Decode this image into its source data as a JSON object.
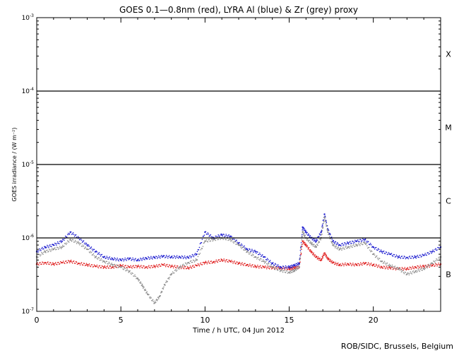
{
  "chart_data": {
    "type": "line",
    "title": "GOES 0.1—0.8nm (red), LYRA Al (blue) & Zr (grey) proxy",
    "xlabel": "Time / h UTC, 04 Jun 2012",
    "ylabel": "GOES irradiance / (W m⁻²)",
    "credit": "ROB/SIDC, Brussels, Belgium",
    "xlim": [
      0,
      24
    ],
    "ylim": [
      1e-07,
      0.001
    ],
    "yscale": "log",
    "x_ticks": [
      0,
      5,
      10,
      15,
      20
    ],
    "x_tick_labels": [
      "0",
      "5",
      "10",
      "15",
      "20"
    ],
    "y_ticks": [
      1e-07,
      1e-06,
      1e-05,
      0.0001,
      0.001
    ],
    "y_tick_labels": [
      {
        "base": "10",
        "exp": "-7"
      },
      {
        "base": "10",
        "exp": "-6"
      },
      {
        "base": "10",
        "exp": "-5"
      },
      {
        "base": "10",
        "exp": "-4"
      },
      {
        "base": "10",
        "exp": "-3"
      }
    ],
    "flare_class_lines": [
      1e-06,
      1e-05,
      0.0001
    ],
    "flare_classes": [
      {
        "label": "X",
        "value": 0.00032
      },
      {
        "label": "M",
        "value": 3.2e-05
      },
      {
        "label": "C",
        "value": 3.2e-06
      },
      {
        "label": "B",
        "value": 3.2e-07
      }
    ],
    "series": [
      {
        "name": "GOES 0.1—0.8nm",
        "color": "#e02020",
        "x": [
          0,
          0.5,
          1,
          1.5,
          2,
          2.5,
          3,
          3.5,
          4,
          4.5,
          5,
          5.5,
          6,
          6.5,
          7,
          7.5,
          8,
          8.5,
          9,
          9.5,
          10,
          10.5,
          11,
          11.5,
          12,
          12.5,
          13,
          13.5,
          14,
          14.5,
          15,
          15.3,
          15.6,
          15.8,
          16,
          16.3,
          16.6,
          16.9,
          17.1,
          17.3,
          17.6,
          18,
          18.5,
          19,
          19.5,
          20,
          20.5,
          21,
          21.5,
          22,
          22.5,
          23,
          23.5,
          24
        ],
        "y": [
          4.4e-07,
          4.6e-07,
          4.4e-07,
          4.6e-07,
          4.8e-07,
          4.5e-07,
          4.3e-07,
          4.1e-07,
          4e-07,
          4e-07,
          4.2e-07,
          4e-07,
          4.1e-07,
          4e-07,
          4.1e-07,
          4.3e-07,
          4.1e-07,
          4e-07,
          3.9e-07,
          4.2e-07,
          4.6e-07,
          4.7e-07,
          5e-07,
          4.8e-07,
          4.5e-07,
          4.3e-07,
          4.1e-07,
          4e-07,
          3.9e-07,
          3.9e-07,
          3.8e-07,
          3.9e-07,
          4e-07,
          9e-07,
          8e-07,
          6.5e-07,
          5.5e-07,
          5e-07,
          6.2e-07,
          5.2e-07,
          4.6e-07,
          4.3e-07,
          4.4e-07,
          4.3e-07,
          4.5e-07,
          4.3e-07,
          4e-07,
          3.9e-07,
          3.8e-07,
          3.8e-07,
          4e-07,
          4.1e-07,
          4.2e-07,
          4.4e-07
        ]
      },
      {
        "name": "LYRA Al",
        "color": "#2020d0",
        "x": [
          0,
          0.5,
          1,
          1.5,
          2,
          2.5,
          3,
          3.5,
          4,
          4.5,
          5,
          5.5,
          6,
          6.5,
          7,
          7.5,
          8,
          8.5,
          9,
          9.5,
          10,
          10.5,
          11,
          11.5,
          12,
          12.5,
          13,
          13.5,
          14,
          14.5,
          15,
          15.3,
          15.6,
          15.8,
          16,
          16.3,
          16.6,
          16.9,
          17.1,
          17.3,
          17.6,
          18,
          18.5,
          19,
          19.5,
          20,
          20.5,
          21,
          21.5,
          22,
          22.5,
          23,
          23.5,
          24
        ],
        "y": [
          6.5e-07,
          7.5e-07,
          8e-07,
          9e-07,
          1.2e-06,
          1e-06,
          8e-07,
          6.5e-07,
          5.5e-07,
          5.2e-07,
          5e-07,
          5.2e-07,
          5e-07,
          5.3e-07,
          5.4e-07,
          5.6e-07,
          5.5e-07,
          5.5e-07,
          5.4e-07,
          6e-07,
          1.2e-06,
          1e-06,
          1.1e-06,
          1.05e-06,
          8.5e-07,
          7e-07,
          6.5e-07,
          5.5e-07,
          4.5e-07,
          4e-07,
          4e-07,
          4.2e-07,
          4.5e-07,
          1.4e-06,
          1.2e-06,
          1e-06,
          9e-07,
          1.2e-06,
          2.1e-06,
          1.3e-06,
          9e-07,
          8e-07,
          8.5e-07,
          9e-07,
          9.5e-07,
          7.5e-07,
          6.5e-07,
          6e-07,
          5.5e-07,
          5.4e-07,
          5.5e-07,
          5.8e-07,
          6.5e-07,
          7.5e-07
        ]
      },
      {
        "name": "LYRA Zr",
        "color": "#909090",
        "x": [
          0,
          0.5,
          1,
          1.5,
          2,
          2.5,
          3,
          3.5,
          4,
          4.5,
          5,
          5.5,
          6,
          6.3,
          6.6,
          7,
          7.3,
          7.6,
          8,
          8.5,
          9,
          9.5,
          10,
          10.5,
          11,
          11.5,
          12,
          12.5,
          13,
          13.5,
          14,
          14.5,
          15,
          15.3,
          15.6,
          15.8,
          16,
          16.3,
          16.6,
          16.9,
          17.1,
          17.3,
          17.6,
          18,
          18.5,
          19,
          19.5,
          20,
          20.5,
          21,
          21.5,
          22,
          22.5,
          23,
          23.5,
          24
        ],
        "y": [
          5.5e-07,
          6.5e-07,
          7e-07,
          7.5e-07,
          9.5e-07,
          8.5e-07,
          7e-07,
          5.5e-07,
          4.8e-07,
          4.3e-07,
          4e-07,
          3.5e-07,
          2.8e-07,
          2.2e-07,
          1.7e-07,
          1.3e-07,
          1.6e-07,
          2.3e-07,
          3.2e-07,
          4e-07,
          4.6e-07,
          5e-07,
          9e-07,
          9.5e-07,
          1e-06,
          9.5e-07,
          8e-07,
          6.5e-07,
          5.5e-07,
          4.8e-07,
          4e-07,
          3.6e-07,
          3.4e-07,
          3.6e-07,
          4e-07,
          1.2e-06,
          1e-06,
          8.5e-07,
          7.5e-07,
          1e-06,
          1.9e-06,
          1.2e-06,
          8e-07,
          7e-07,
          7.5e-07,
          8e-07,
          8.5e-07,
          6e-07,
          4.8e-07,
          4.2e-07,
          3.8e-07,
          3.2e-07,
          3.5e-07,
          3.8e-07,
          4.5e-07,
          5.5e-07
        ]
      }
    ]
  }
}
